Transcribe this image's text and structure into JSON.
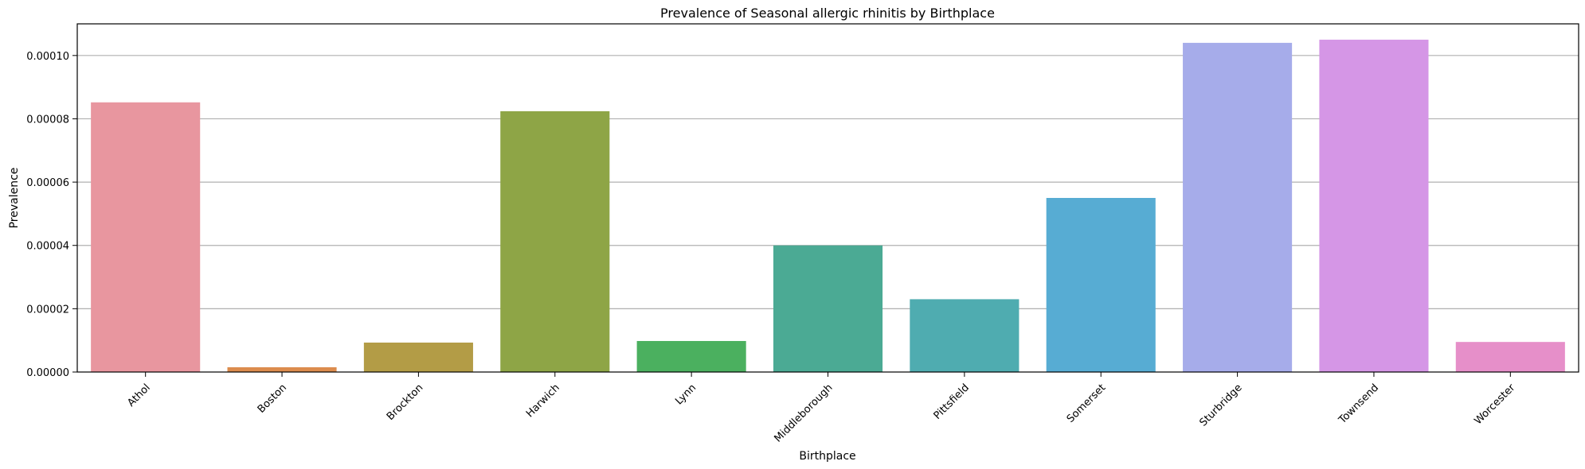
{
  "chart_data": {
    "type": "bar",
    "title": "Prevalence of Seasonal allergic rhinitis by Birthplace",
    "xlabel": "Birthplace",
    "ylabel": "Prevalence",
    "categories": [
      "Athol",
      "Boston",
      "Brockton",
      "Harwich",
      "Lynn",
      "Middleborough",
      "Pittsfield",
      "Somerset",
      "Sturbridge",
      "Townsend",
      "Worcester"
    ],
    "values": [
      8.52e-05,
      1.5e-06,
      9.3e-06,
      8.24e-05,
      9.8e-06,
      4e-05,
      2.3e-05,
      5.5e-05,
      0.000104,
      0.000105,
      9.5e-06
    ],
    "colors": [
      "#e8969f",
      "#dc8c4d",
      "#b39c46",
      "#8ea546",
      "#4bb05f",
      "#4baa94",
      "#4facb0",
      "#57acd3",
      "#a6acea",
      "#d596e6",
      "#e68fc9"
    ],
    "ylim": [
      0,
      0.00011
    ],
    "yticks": [
      "0.00000",
      "0.00002",
      "0.00004",
      "0.00006",
      "0.00008",
      "0.00010"
    ],
    "ytick_values": [
      0,
      2e-05,
      4e-05,
      6e-05,
      8e-05,
      0.0001
    ],
    "grid": "y",
    "legend": "none"
  }
}
